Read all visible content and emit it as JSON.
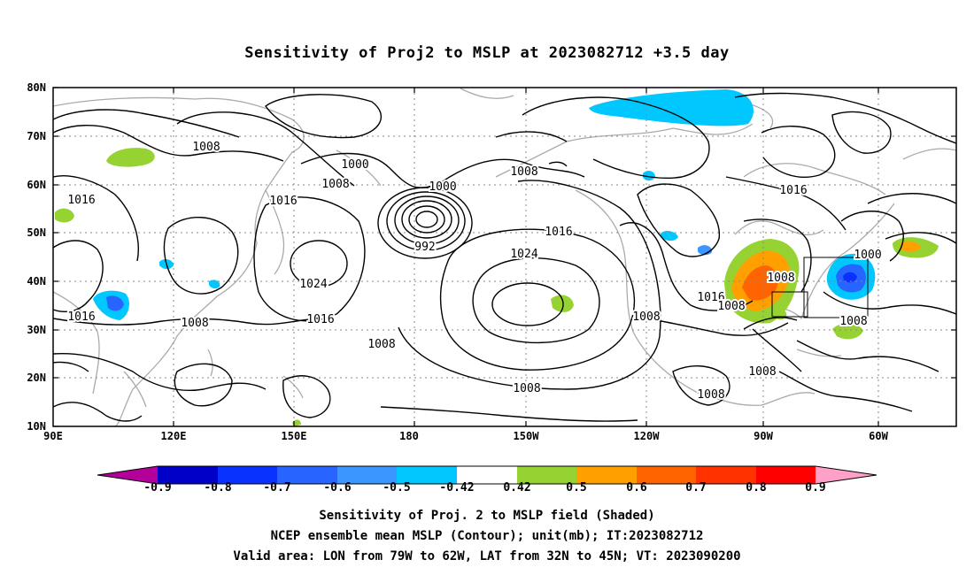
{
  "title": "Sensitivity of Proj2 to MSLP at 2023082712 +3.5 day",
  "lat_ticks": [
    "80N",
    "70N",
    "60N",
    "50N",
    "40N",
    "30N",
    "20N",
    "10N"
  ],
  "lon_ticks": [
    "90E",
    "120E",
    "150E",
    "180",
    "150W",
    "120W",
    "90W",
    "60W"
  ],
  "contour_labels": [
    "1008",
    "1000",
    "1008",
    "1016",
    "1016",
    "1000",
    "1008",
    "1016",
    "1024",
    "992",
    "1024",
    "1008",
    "1016",
    "1016",
    "1008",
    "1008",
    "1008",
    "1016",
    "1008",
    "1000",
    "1008",
    "1008",
    "1008",
    "1016",
    "1008"
  ],
  "colorbar": {
    "labels": [
      "-0.9",
      "-0.8",
      "-0.7",
      "-0.6",
      "-0.5",
      "-0.42",
      "0.42",
      "0.5",
      "0.6",
      "0.7",
      "0.8",
      "0.9"
    ],
    "colors": [
      "#b4009b",
      "#0000c8",
      "#0a32ff",
      "#2864ff",
      "#3c96ff",
      "#00c8ff",
      "#ffffff",
      "#96d232",
      "#ffa000",
      "#ff6400",
      "#ff3200",
      "#ff0000",
      "#ffa0c8"
    ]
  },
  "caption": {
    "line1": "Sensitivity of Proj. 2 to MSLP field (Shaded)",
    "line2": "NCEP ensemble mean MSLP (Contour); unit(mb); IT:2023082712",
    "line3": "Valid area: LON from 79W to 62W, LAT from 32N to 45N; VT: 2023090200"
  }
}
